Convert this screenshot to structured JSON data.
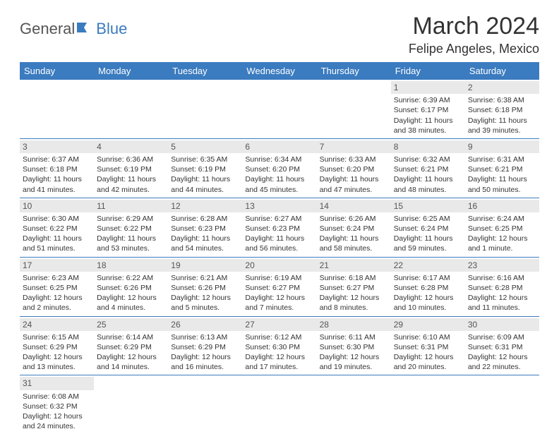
{
  "brand": {
    "part1": "General",
    "part2": "Blue"
  },
  "title": "March 2024",
  "location": "Felipe Angeles, Mexico",
  "colors": {
    "header_bg": "#3b7bbf",
    "header_text": "#ffffff",
    "daynum_bg": "#e9e9e9",
    "row_border": "#3b7bbf",
    "body_text": "#333333"
  },
  "day_headers": [
    "Sunday",
    "Monday",
    "Tuesday",
    "Wednesday",
    "Thursday",
    "Friday",
    "Saturday"
  ],
  "weeks": [
    [
      {
        "n": "",
        "sr": "",
        "ss": "",
        "dl": ""
      },
      {
        "n": "",
        "sr": "",
        "ss": "",
        "dl": ""
      },
      {
        "n": "",
        "sr": "",
        "ss": "",
        "dl": ""
      },
      {
        "n": "",
        "sr": "",
        "ss": "",
        "dl": ""
      },
      {
        "n": "",
        "sr": "",
        "ss": "",
        "dl": ""
      },
      {
        "n": "1",
        "sr": "Sunrise: 6:39 AM",
        "ss": "Sunset: 6:17 PM",
        "dl": "Daylight: 11 hours and 38 minutes."
      },
      {
        "n": "2",
        "sr": "Sunrise: 6:38 AM",
        "ss": "Sunset: 6:18 PM",
        "dl": "Daylight: 11 hours and 39 minutes."
      }
    ],
    [
      {
        "n": "3",
        "sr": "Sunrise: 6:37 AM",
        "ss": "Sunset: 6:18 PM",
        "dl": "Daylight: 11 hours and 41 minutes."
      },
      {
        "n": "4",
        "sr": "Sunrise: 6:36 AM",
        "ss": "Sunset: 6:19 PM",
        "dl": "Daylight: 11 hours and 42 minutes."
      },
      {
        "n": "5",
        "sr": "Sunrise: 6:35 AM",
        "ss": "Sunset: 6:19 PM",
        "dl": "Daylight: 11 hours and 44 minutes."
      },
      {
        "n": "6",
        "sr": "Sunrise: 6:34 AM",
        "ss": "Sunset: 6:20 PM",
        "dl": "Daylight: 11 hours and 45 minutes."
      },
      {
        "n": "7",
        "sr": "Sunrise: 6:33 AM",
        "ss": "Sunset: 6:20 PM",
        "dl": "Daylight: 11 hours and 47 minutes."
      },
      {
        "n": "8",
        "sr": "Sunrise: 6:32 AM",
        "ss": "Sunset: 6:21 PM",
        "dl": "Daylight: 11 hours and 48 minutes."
      },
      {
        "n": "9",
        "sr": "Sunrise: 6:31 AM",
        "ss": "Sunset: 6:21 PM",
        "dl": "Daylight: 11 hours and 50 minutes."
      }
    ],
    [
      {
        "n": "10",
        "sr": "Sunrise: 6:30 AM",
        "ss": "Sunset: 6:22 PM",
        "dl": "Daylight: 11 hours and 51 minutes."
      },
      {
        "n": "11",
        "sr": "Sunrise: 6:29 AM",
        "ss": "Sunset: 6:22 PM",
        "dl": "Daylight: 11 hours and 53 minutes."
      },
      {
        "n": "12",
        "sr": "Sunrise: 6:28 AM",
        "ss": "Sunset: 6:23 PM",
        "dl": "Daylight: 11 hours and 54 minutes."
      },
      {
        "n": "13",
        "sr": "Sunrise: 6:27 AM",
        "ss": "Sunset: 6:23 PM",
        "dl": "Daylight: 11 hours and 56 minutes."
      },
      {
        "n": "14",
        "sr": "Sunrise: 6:26 AM",
        "ss": "Sunset: 6:24 PM",
        "dl": "Daylight: 11 hours and 58 minutes."
      },
      {
        "n": "15",
        "sr": "Sunrise: 6:25 AM",
        "ss": "Sunset: 6:24 PM",
        "dl": "Daylight: 11 hours and 59 minutes."
      },
      {
        "n": "16",
        "sr": "Sunrise: 6:24 AM",
        "ss": "Sunset: 6:25 PM",
        "dl": "Daylight: 12 hours and 1 minute."
      }
    ],
    [
      {
        "n": "17",
        "sr": "Sunrise: 6:23 AM",
        "ss": "Sunset: 6:25 PM",
        "dl": "Daylight: 12 hours and 2 minutes."
      },
      {
        "n": "18",
        "sr": "Sunrise: 6:22 AM",
        "ss": "Sunset: 6:26 PM",
        "dl": "Daylight: 12 hours and 4 minutes."
      },
      {
        "n": "19",
        "sr": "Sunrise: 6:21 AM",
        "ss": "Sunset: 6:26 PM",
        "dl": "Daylight: 12 hours and 5 minutes."
      },
      {
        "n": "20",
        "sr": "Sunrise: 6:19 AM",
        "ss": "Sunset: 6:27 PM",
        "dl": "Daylight: 12 hours and 7 minutes."
      },
      {
        "n": "21",
        "sr": "Sunrise: 6:18 AM",
        "ss": "Sunset: 6:27 PM",
        "dl": "Daylight: 12 hours and 8 minutes."
      },
      {
        "n": "22",
        "sr": "Sunrise: 6:17 AM",
        "ss": "Sunset: 6:28 PM",
        "dl": "Daylight: 12 hours and 10 minutes."
      },
      {
        "n": "23",
        "sr": "Sunrise: 6:16 AM",
        "ss": "Sunset: 6:28 PM",
        "dl": "Daylight: 12 hours and 11 minutes."
      }
    ],
    [
      {
        "n": "24",
        "sr": "Sunrise: 6:15 AM",
        "ss": "Sunset: 6:29 PM",
        "dl": "Daylight: 12 hours and 13 minutes."
      },
      {
        "n": "25",
        "sr": "Sunrise: 6:14 AM",
        "ss": "Sunset: 6:29 PM",
        "dl": "Daylight: 12 hours and 14 minutes."
      },
      {
        "n": "26",
        "sr": "Sunrise: 6:13 AM",
        "ss": "Sunset: 6:29 PM",
        "dl": "Daylight: 12 hours and 16 minutes."
      },
      {
        "n": "27",
        "sr": "Sunrise: 6:12 AM",
        "ss": "Sunset: 6:30 PM",
        "dl": "Daylight: 12 hours and 17 minutes."
      },
      {
        "n": "28",
        "sr": "Sunrise: 6:11 AM",
        "ss": "Sunset: 6:30 PM",
        "dl": "Daylight: 12 hours and 19 minutes."
      },
      {
        "n": "29",
        "sr": "Sunrise: 6:10 AM",
        "ss": "Sunset: 6:31 PM",
        "dl": "Daylight: 12 hours and 20 minutes."
      },
      {
        "n": "30",
        "sr": "Sunrise: 6:09 AM",
        "ss": "Sunset: 6:31 PM",
        "dl": "Daylight: 12 hours and 22 minutes."
      }
    ],
    [
      {
        "n": "31",
        "sr": "Sunrise: 6:08 AM",
        "ss": "Sunset: 6:32 PM",
        "dl": "Daylight: 12 hours and 24 minutes."
      },
      {
        "n": "",
        "sr": "",
        "ss": "",
        "dl": ""
      },
      {
        "n": "",
        "sr": "",
        "ss": "",
        "dl": ""
      },
      {
        "n": "",
        "sr": "",
        "ss": "",
        "dl": ""
      },
      {
        "n": "",
        "sr": "",
        "ss": "",
        "dl": ""
      },
      {
        "n": "",
        "sr": "",
        "ss": "",
        "dl": ""
      },
      {
        "n": "",
        "sr": "",
        "ss": "",
        "dl": ""
      }
    ]
  ]
}
